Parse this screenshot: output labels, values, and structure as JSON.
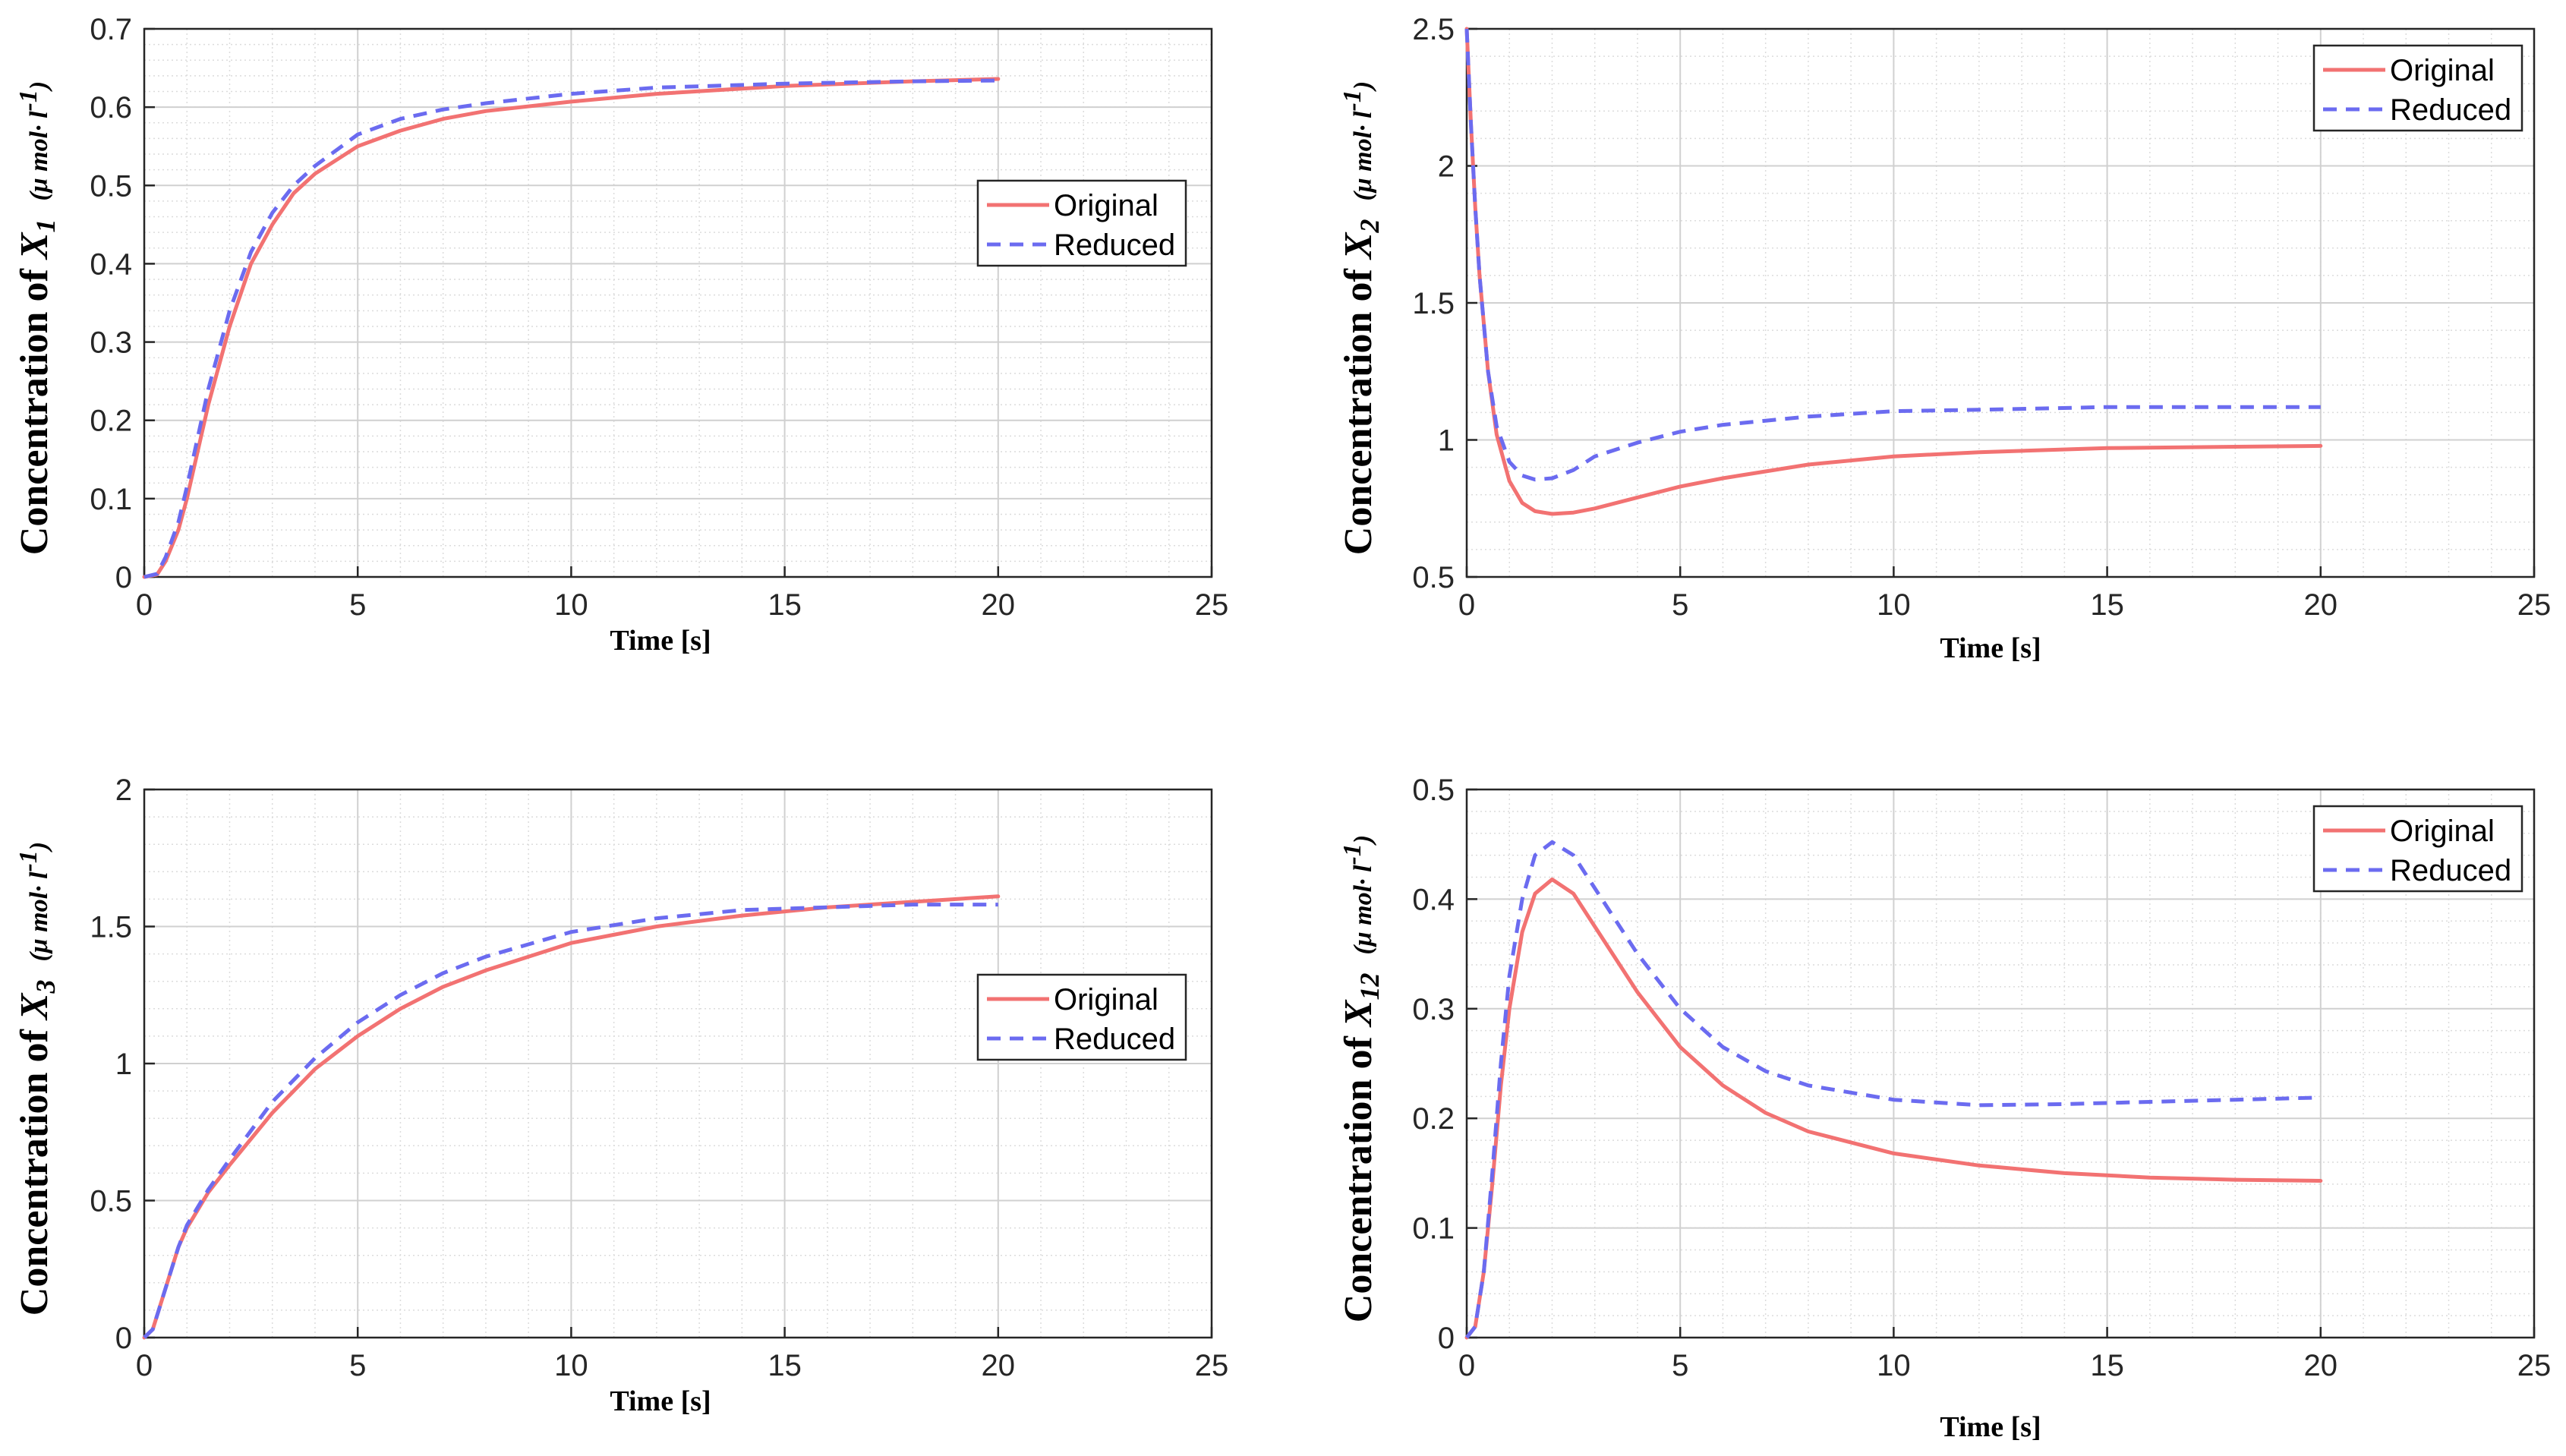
{
  "figure": {
    "legend_entries": [
      {
        "name": "Original",
        "color": "#f27272",
        "dash": "solid"
      },
      {
        "name": "Reduced",
        "color": "#6b6bf0",
        "dash": "dashed"
      }
    ]
  },
  "chart_data": [
    {
      "type": "line",
      "title": "",
      "xlabel": "Time [s]",
      "ylabel_text": "Concentration of",
      "ylabel_var": "X",
      "ylabel_sub": "1",
      "ylabel_unit": "(μ mol· l",
      "ylabel_unit_sup": "-1",
      "ylabel_unit_close": ")",
      "xlim": [
        0,
        25
      ],
      "ylim": [
        0,
        0.7
      ],
      "xticks": [
        0,
        5,
        10,
        15,
        20,
        25
      ],
      "xtick_labels": [
        "0",
        "5",
        "10",
        "15",
        "20",
        "25"
      ],
      "yticks": [
        0,
        0.1,
        0.2,
        0.3,
        0.4,
        0.5,
        0.6,
        0.7
      ],
      "ytick_labels": [
        "0",
        "0.1",
        "0.2",
        "0.3",
        "0.4",
        "0.5",
        "0.6",
        "0.7"
      ],
      "grid": true,
      "minor_grid": true,
      "legend_placement": "center-right",
      "series": [
        {
          "name": "Original",
          "x": [
            0,
            0.3,
            0.5,
            0.8,
            1.0,
            1.5,
            2.0,
            2.5,
            3.0,
            3.5,
            4.0,
            5.0,
            6.0,
            7.0,
            8.0,
            10.0,
            12.0,
            15.0,
            18.0,
            20.0
          ],
          "y": [
            0,
            0.003,
            0.02,
            0.06,
            0.1,
            0.22,
            0.32,
            0.4,
            0.45,
            0.49,
            0.515,
            0.55,
            0.57,
            0.585,
            0.595,
            0.607,
            0.617,
            0.627,
            0.633,
            0.636
          ]
        },
        {
          "name": "Reduced",
          "x": [
            0,
            0.3,
            0.5,
            0.8,
            1.0,
            1.5,
            2.0,
            2.5,
            3.0,
            3.5,
            4.0,
            5.0,
            6.0,
            7.0,
            8.0,
            10.0,
            12.0,
            15.0,
            18.0,
            20.0
          ],
          "y": [
            0,
            0.004,
            0.025,
            0.07,
            0.115,
            0.24,
            0.34,
            0.415,
            0.465,
            0.5,
            0.525,
            0.565,
            0.585,
            0.597,
            0.605,
            0.617,
            0.625,
            0.63,
            0.633,
            0.634
          ]
        }
      ]
    },
    {
      "type": "line",
      "title": "",
      "xlabel": "Time [s]",
      "ylabel_text": "Concentration of",
      "ylabel_var": "X",
      "ylabel_sub": "2",
      "ylabel_unit": "(μ mol· l",
      "ylabel_unit_sup": "-1",
      "ylabel_unit_close": ")",
      "xlim": [
        0,
        25
      ],
      "ylim": [
        0.5,
        2.5
      ],
      "xticks": [
        0,
        5,
        10,
        15,
        20,
        25
      ],
      "xtick_labels": [
        "0",
        "5",
        "10",
        "15",
        "20",
        "25"
      ],
      "yticks": [
        0.5,
        1,
        1.5,
        2,
        2.5
      ],
      "ytick_labels": [
        "0.5",
        "1",
        "1.5",
        "2",
        "2.5"
      ],
      "grid": true,
      "minor_grid": true,
      "legend_placement": "top-right",
      "series": [
        {
          "name": "Original",
          "x": [
            0,
            0.1,
            0.2,
            0.3,
            0.5,
            0.7,
            1.0,
            1.3,
            1.6,
            2.0,
            2.5,
            3.0,
            4.0,
            5.0,
            6.0,
            8.0,
            10.0,
            12.0,
            15.0,
            18.0,
            20.0
          ],
          "y": [
            2.5,
            2.15,
            1.85,
            1.6,
            1.25,
            1.02,
            0.85,
            0.77,
            0.74,
            0.73,
            0.735,
            0.75,
            0.79,
            0.83,
            0.86,
            0.91,
            0.94,
            0.955,
            0.97,
            0.975,
            0.978
          ]
        },
        {
          "name": "Reduced",
          "x": [
            0,
            0.1,
            0.2,
            0.3,
            0.5,
            0.7,
            1.0,
            1.3,
            1.6,
            2.0,
            2.5,
            3.0,
            4.0,
            5.0,
            6.0,
            8.0,
            10.0,
            12.0,
            15.0,
            18.0,
            20.0
          ],
          "y": [
            2.5,
            2.15,
            1.85,
            1.6,
            1.25,
            1.05,
            0.92,
            0.87,
            0.855,
            0.86,
            0.89,
            0.94,
            0.99,
            1.03,
            1.055,
            1.085,
            1.105,
            1.11,
            1.12,
            1.12,
            1.12
          ]
        }
      ]
    },
    {
      "type": "line",
      "title": "",
      "xlabel": "Time [s]",
      "ylabel_text": "Concentration of",
      "ylabel_var": "X",
      "ylabel_sub": "3",
      "ylabel_unit": "(μ mol· l",
      "ylabel_unit_sup": "-1",
      "ylabel_unit_close": ")",
      "xlim": [
        0,
        25
      ],
      "ylim": [
        0,
        2
      ],
      "xticks": [
        0,
        5,
        10,
        15,
        20,
        25
      ],
      "xtick_labels": [
        "0",
        "5",
        "10",
        "15",
        "20",
        "25"
      ],
      "yticks": [
        0,
        0.5,
        1,
        1.5,
        2
      ],
      "ytick_labels": [
        "0",
        "0.5",
        "1",
        "1.5",
        "2"
      ],
      "grid": true,
      "minor_grid": true,
      "legend_placement": "center-right",
      "series": [
        {
          "name": "Original",
          "x": [
            0,
            0.2,
            0.5,
            0.8,
            1.0,
            1.5,
            2.0,
            3.0,
            4.0,
            5.0,
            6.0,
            7.0,
            8.0,
            10.0,
            12.0,
            14.0,
            16.0,
            18.0,
            20.0
          ],
          "y": [
            0,
            0.03,
            0.18,
            0.33,
            0.4,
            0.53,
            0.63,
            0.82,
            0.98,
            1.1,
            1.2,
            1.28,
            1.34,
            1.44,
            1.5,
            1.54,
            1.57,
            1.59,
            1.61
          ]
        },
        {
          "name": "Reduced",
          "x": [
            0,
            0.2,
            0.5,
            0.8,
            1.0,
            1.5,
            2.0,
            3.0,
            4.0,
            5.0,
            6.0,
            7.0,
            8.0,
            10.0,
            12.0,
            14.0,
            16.0,
            18.0,
            20.0
          ],
          "y": [
            0,
            0.03,
            0.18,
            0.33,
            0.41,
            0.54,
            0.65,
            0.86,
            1.02,
            1.15,
            1.25,
            1.33,
            1.39,
            1.48,
            1.53,
            1.56,
            1.57,
            1.58,
            1.58
          ]
        }
      ]
    },
    {
      "type": "line",
      "title": "",
      "xlabel": "Time [s]",
      "ylabel_text": "Concentration of",
      "ylabel_var": "X",
      "ylabel_sub": "12",
      "ylabel_unit": "(μ mol· l",
      "ylabel_unit_sup": "-1",
      "ylabel_unit_close": ")",
      "xlim": [
        0,
        25
      ],
      "ylim": [
        0,
        0.5
      ],
      "xticks": [
        0,
        5,
        10,
        15,
        20,
        25
      ],
      "xtick_labels": [
        "0",
        "5",
        "10",
        "15",
        "20",
        "25"
      ],
      "yticks": [
        0,
        0.1,
        0.2,
        0.3,
        0.4,
        0.5
      ],
      "ytick_labels": [
        "0",
        "0.1",
        "0.2",
        "0.3",
        "0.4",
        "0.5"
      ],
      "grid": true,
      "minor_grid": true,
      "legend_placement": "top-right",
      "series": [
        {
          "name": "Original",
          "x": [
            0,
            0.2,
            0.4,
            0.6,
            0.8,
            1.0,
            1.3,
            1.6,
            2.0,
            2.5,
            3.0,
            4.0,
            5.0,
            6.0,
            7.0,
            8.0,
            10.0,
            12.0,
            14.0,
            16.0,
            18.0,
            20.0
          ],
          "y": [
            0,
            0.01,
            0.06,
            0.14,
            0.23,
            0.3,
            0.37,
            0.405,
            0.418,
            0.405,
            0.375,
            0.315,
            0.265,
            0.23,
            0.205,
            0.188,
            0.168,
            0.157,
            0.15,
            0.146,
            0.144,
            0.143
          ]
        },
        {
          "name": "Reduced",
          "x": [
            0,
            0.2,
            0.4,
            0.6,
            0.8,
            1.0,
            1.3,
            1.6,
            2.0,
            2.5,
            3.0,
            4.0,
            5.0,
            6.0,
            7.0,
            8.0,
            10.0,
            12.0,
            14.0,
            16.0,
            18.0,
            20.0
          ],
          "y": [
            0,
            0.01,
            0.06,
            0.15,
            0.25,
            0.33,
            0.4,
            0.44,
            0.452,
            0.44,
            0.41,
            0.35,
            0.3,
            0.265,
            0.243,
            0.23,
            0.217,
            0.212,
            0.213,
            0.215,
            0.217,
            0.219
          ]
        }
      ]
    }
  ]
}
